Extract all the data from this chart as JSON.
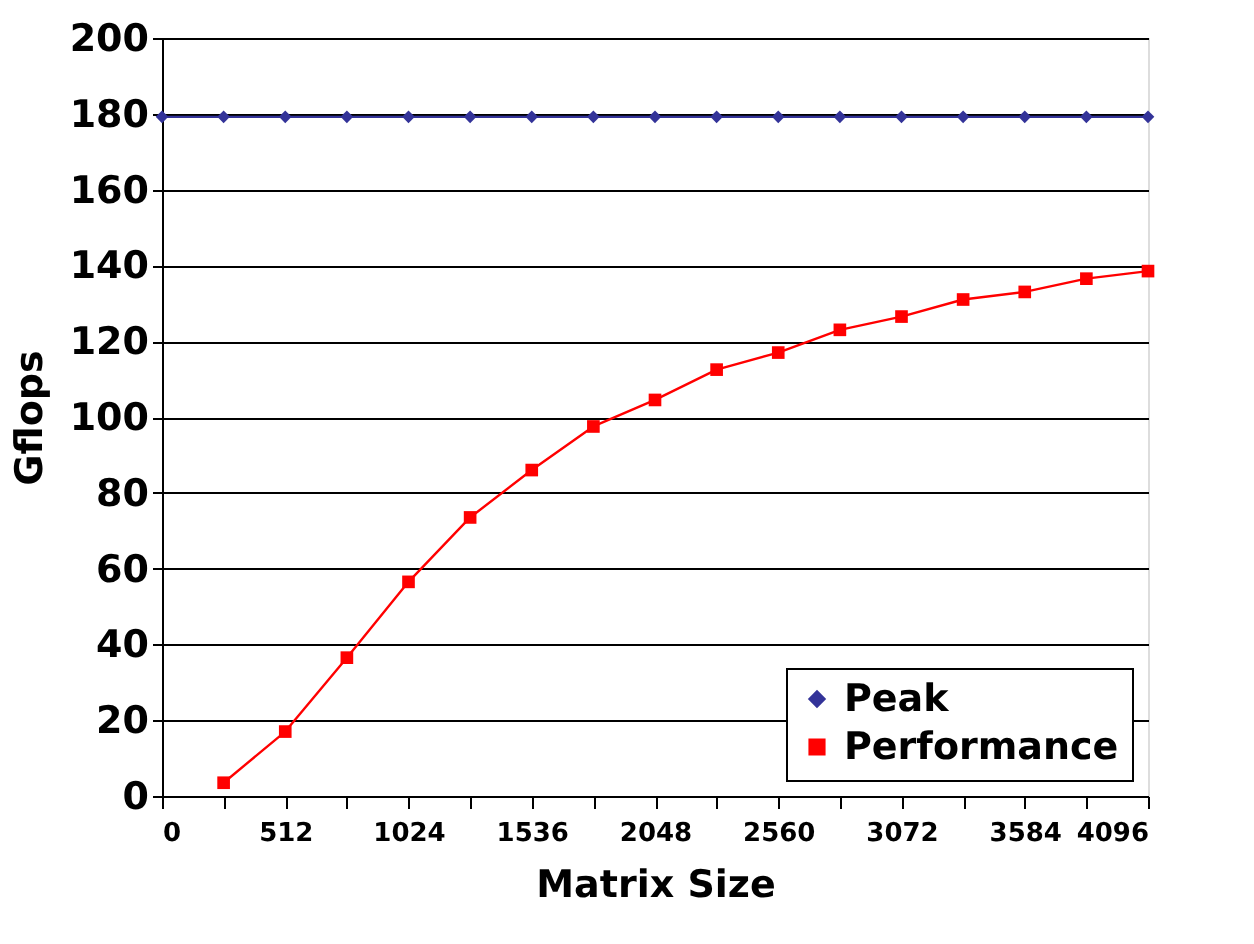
{
  "chart_data": {
    "type": "line",
    "xlabel": "Matrix Size",
    "ylabel": "Gflops",
    "x": [
      0,
      256,
      512,
      768,
      1024,
      1280,
      1536,
      1792,
      2048,
      2304,
      2560,
      2816,
      3072,
      3328,
      3584,
      3840,
      4096
    ],
    "series": [
      {
        "name": "Peak",
        "color": "#333399",
        "marker": "diamond",
        "values": [
          179.2,
          179.2,
          179.2,
          179.2,
          179.2,
          179.2,
          179.2,
          179.2,
          179.2,
          179.2,
          179.2,
          179.2,
          179.2,
          179.2,
          179.2,
          179.2,
          179.2
        ]
      },
      {
        "name": "Performance",
        "color": "#ff0000",
        "marker": "square",
        "values": [
          null,
          3.5,
          17,
          36.5,
          56.5,
          73.5,
          86,
          97.5,
          104.5,
          112.5,
          117,
          123,
          126.5,
          131,
          133,
          136.5,
          138.5
        ]
      }
    ],
    "xlim": [
      0,
      4096
    ],
    "xticks": [
      0,
      {
        "value": 256,
        "label": null
      },
      512,
      {
        "value": 768,
        "label": null
      },
      1024,
      {
        "value": 1280,
        "label": null
      },
      1536,
      {
        "value": 1792,
        "label": null
      },
      2048,
      {
        "value": 2304,
        "label": null
      },
      2560,
      {
        "value": 2816,
        "label": null
      },
      3072,
      {
        "value": 3328,
        "label": null
      },
      3584,
      {
        "value": 3840,
        "label": null
      },
      4096
    ],
    "ylim": [
      0,
      200
    ],
    "yticks": [
      0,
      20,
      40,
      60,
      80,
      100,
      120,
      140,
      160,
      180,
      200
    ],
    "grid": "y",
    "legend": "bottom right",
    "line_style": "solid"
  }
}
